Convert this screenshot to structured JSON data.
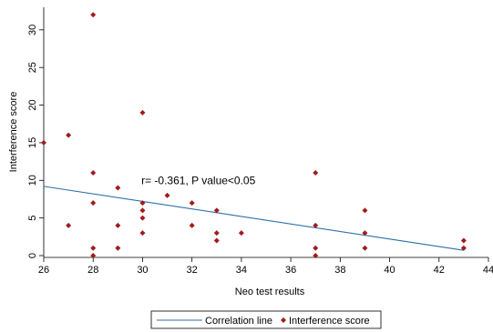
{
  "chart_data": {
    "type": "scatter",
    "xlabel": "Neo test results",
    "ylabel": "Interference score",
    "xlim": [
      26,
      44
    ],
    "ylim": [
      0,
      33
    ],
    "x_ticks": [
      26,
      28,
      30,
      32,
      34,
      36,
      38,
      40,
      42,
      44
    ],
    "y_ticks": [
      0,
      5,
      10,
      15,
      20,
      25,
      30
    ],
    "grid": false,
    "legend_position": "bottom",
    "annotation": "r= -0.361, P value<0.05",
    "series": [
      {
        "name": "Interference score",
        "type": "scatter",
        "color": "#a01c1c",
        "points": [
          [
            26,
            15
          ],
          [
            27,
            16
          ],
          [
            27,
            4
          ],
          [
            28,
            32
          ],
          [
            28,
            11
          ],
          [
            28,
            7
          ],
          [
            28,
            1
          ],
          [
            28,
            0
          ],
          [
            29,
            9
          ],
          [
            29,
            4
          ],
          [
            29,
            1
          ],
          [
            30,
            19
          ],
          [
            30,
            7
          ],
          [
            30,
            6
          ],
          [
            30,
            5
          ],
          [
            30,
            3
          ],
          [
            31,
            8
          ],
          [
            32,
            7
          ],
          [
            32,
            4
          ],
          [
            33,
            6
          ],
          [
            33,
            3
          ],
          [
            33,
            2
          ],
          [
            34,
            3
          ],
          [
            37,
            11
          ],
          [
            37,
            4
          ],
          [
            37,
            1
          ],
          [
            37,
            0
          ],
          [
            39,
            6
          ],
          [
            39,
            3
          ],
          [
            39,
            1
          ],
          [
            43,
            2
          ],
          [
            43,
            1
          ]
        ]
      },
      {
        "name": "Correlation line",
        "type": "line",
        "color": "#2f6fa8",
        "points": [
          [
            26,
            9.2
          ],
          [
            43,
            0.7
          ]
        ]
      }
    ]
  }
}
